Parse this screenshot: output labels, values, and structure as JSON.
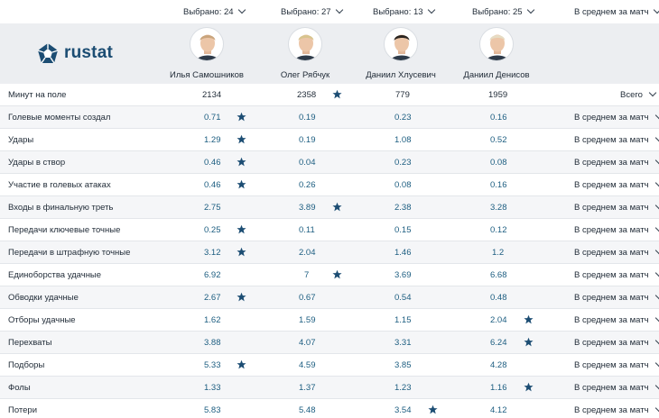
{
  "selectors": [
    "Выбрано: 24",
    "Выбрано: 27",
    "Выбрано: 13",
    "Выбрано: 25",
    "В среднем за матч"
  ],
  "logo": "rustat",
  "players": [
    "Илья Самошников",
    "Олег Рябчук",
    "Даниил Хлусевич",
    "Даниил Денисов"
  ],
  "rows": [
    {
      "label": "Минут на поле",
      "values": [
        "2134",
        "2358",
        "779",
        "1959"
      ],
      "best": 1,
      "mode": "Всего"
    },
    {
      "label": "Голевые моменты создал",
      "values": [
        "0.71",
        "0.19",
        "0.23",
        "0.16"
      ],
      "best": 0,
      "mode": "В среднем за матч"
    },
    {
      "label": "Удары",
      "values": [
        "1.29",
        "0.19",
        "1.08",
        "0.52"
      ],
      "best": 0,
      "mode": "В среднем за матч"
    },
    {
      "label": "Удары в створ",
      "values": [
        "0.46",
        "0.04",
        "0.23",
        "0.08"
      ],
      "best": 0,
      "mode": "В среднем за матч"
    },
    {
      "label": "Участие в голевых атаках",
      "values": [
        "0.46",
        "0.26",
        "0.08",
        "0.16"
      ],
      "best": 0,
      "mode": "В среднем за матч"
    },
    {
      "label": "Входы в финальную треть",
      "values": [
        "2.75",
        "3.89",
        "2.38",
        "3.28"
      ],
      "best": 1,
      "mode": "В среднем за матч"
    },
    {
      "label": "Передачи ключевые точные",
      "values": [
        "0.25",
        "0.11",
        "0.15",
        "0.12"
      ],
      "best": 0,
      "mode": "В среднем за матч"
    },
    {
      "label": "Передачи в штрафную точные",
      "values": [
        "3.12",
        "2.04",
        "1.46",
        "1.2"
      ],
      "best": 0,
      "mode": "В среднем за матч"
    },
    {
      "label": "Единоборства удачные",
      "values": [
        "6.92",
        "7",
        "3.69",
        "6.68"
      ],
      "best": 1,
      "mode": "В среднем за матч"
    },
    {
      "label": "Обводки удачные",
      "values": [
        "2.67",
        "0.67",
        "0.54",
        "0.48"
      ],
      "best": 0,
      "mode": "В среднем за матч"
    },
    {
      "label": "Отборы удачные",
      "values": [
        "1.62",
        "1.59",
        "1.15",
        "2.04"
      ],
      "best": 3,
      "mode": "В среднем за матч"
    },
    {
      "label": "Перехваты",
      "values": [
        "3.88",
        "4.07",
        "3.31",
        "6.24"
      ],
      "best": 3,
      "mode": "В среднем за матч"
    },
    {
      "label": "Подборы",
      "values": [
        "5.33",
        "4.59",
        "3.85",
        "4.28"
      ],
      "best": 0,
      "mode": "В среднем за матч"
    },
    {
      "label": "Фолы",
      "values": [
        "1.33",
        "1.37",
        "1.23",
        "1.16"
      ],
      "best": 3,
      "mode": "В среднем за матч"
    },
    {
      "label": "Потери",
      "values": [
        "5.83",
        "5.48",
        "3.54",
        "4.12"
      ],
      "best": 2,
      "mode": "В среднем за матч"
    }
  ],
  "icons": {
    "best": "star-icon",
    "dropdown": "chevron-down-icon",
    "logo": "pentagon-logo-icon"
  },
  "colors": {
    "accent": "#1c4d73",
    "value": "#1c5d80",
    "header_bg": "#eceef1",
    "alt_row": "#f5f6f8"
  }
}
